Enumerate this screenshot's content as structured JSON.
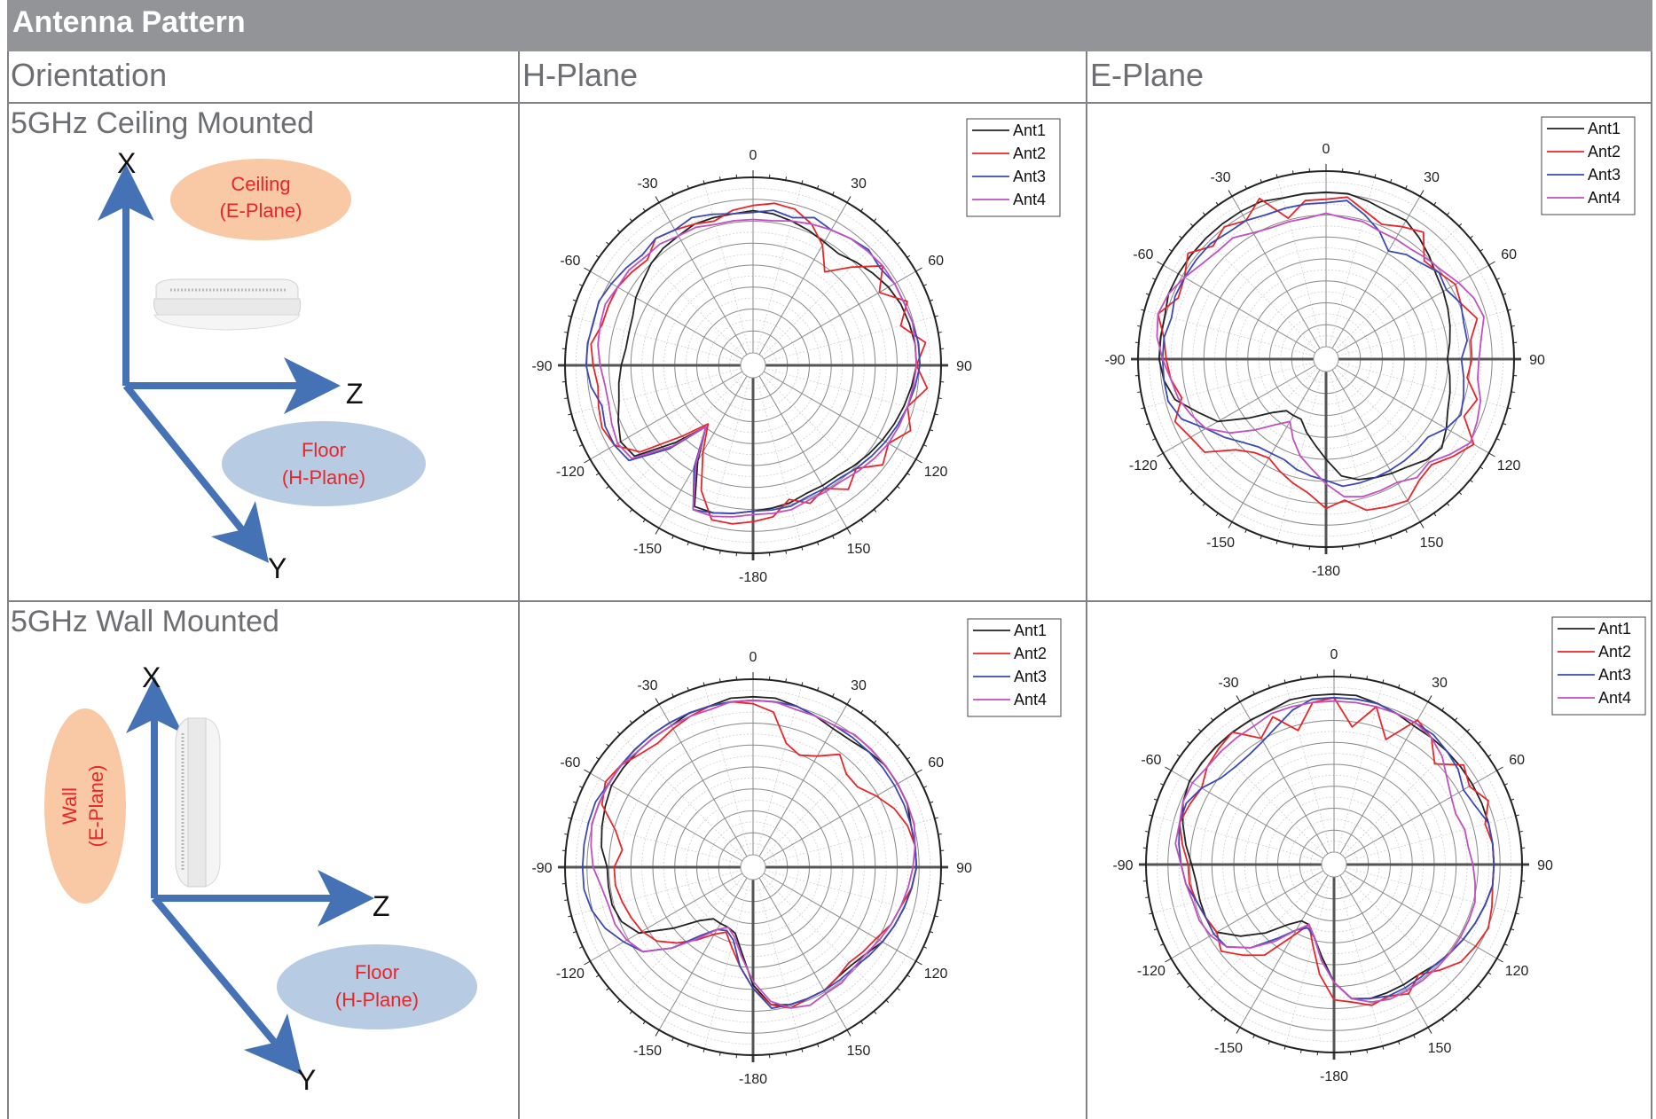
{
  "title": "Antenna Pattern",
  "headers": {
    "orientation": "Orientation",
    "hplane": "H-Plane",
    "eplane": "E-Plane"
  },
  "rows": [
    {
      "label": "5GHz Ceiling Mounted",
      "diagram": {
        "axes": [
          "X",
          "Z",
          "Y"
        ],
        "plane1": [
          "Ceiling",
          "(E-Plane)"
        ],
        "plane2": [
          "Floor",
          "(H-Plane)"
        ]
      }
    },
    {
      "label": "5GHz Wall Mounted",
      "diagram": {
        "axes": [
          "X",
          "Z",
          "Y"
        ],
        "plane1": [
          "Wall",
          "(E-Plane)"
        ],
        "plane2": [
          "Floor",
          "(H-Plane)"
        ]
      }
    }
  ],
  "colors": {
    "ant1": "#222222",
    "ant2": "#e8262a",
    "ant3": "#3b49b4",
    "ant4": "#c050c0",
    "ellipse_orange": "#f8c9a4",
    "ellipse_blue": "#b7cbe3",
    "axis_blue": "#4472b4",
    "label_red": "#e8262a"
  },
  "chart_data": [
    {
      "type": "polar",
      "panel": "5GHz Ceiling Mounted / H-Plane",
      "angle_ticks": [
        "0",
        "30",
        "60",
        "90",
        "120",
        "150",
        "-180",
        "-150",
        "-120",
        "-90",
        "-60",
        "-30"
      ],
      "series": [
        {
          "name": "Ant1",
          "color": "#222222",
          "values": [
            0.81,
            0.8,
            0.78,
            0.76,
            0.74,
            0.73,
            0.76,
            0.79,
            0.82,
            0.84,
            0.85,
            0.86,
            0.86,
            0.84,
            0.82,
            0.8,
            0.78,
            0.76,
            0.74,
            0.72,
            0.72,
            0.72,
            0.74,
            0.75,
            0.76,
            0.78,
            0.8,
            0.8,
            0.56,
            0.37,
            0.55,
            0.78,
            0.8,
            0.76,
            0.72,
            0.7,
            0.68,
            0.66,
            0.66,
            0.67,
            0.7,
            0.72,
            0.75,
            0.77,
            0.78,
            0.8,
            0.8,
            0.8
          ]
        },
        {
          "name": "Ant2",
          "color": "#e8262a",
          "values": [
            0.84,
            0.86,
            0.85,
            0.8,
            0.72,
            0.6,
            0.72,
            0.86,
            0.76,
            0.88,
            0.8,
            0.92,
            0.86,
            0.93,
            0.84,
            0.9,
            0.82,
            0.86,
            0.76,
            0.82,
            0.74,
            0.78,
            0.72,
            0.8,
            0.82,
            0.84,
            0.84,
            0.7,
            0.5,
            0.35,
            0.5,
            0.74,
            0.84,
            0.86,
            0.84,
            0.82,
            0.84,
            0.86,
            0.82,
            0.82,
            0.82,
            0.8,
            0.78,
            0.84,
            0.82,
            0.8,
            0.78,
            0.82
          ]
        },
        {
          "name": "Ant3",
          "color": "#3b49b4",
          "values": [
            0.8,
            0.82,
            0.8,
            0.84,
            0.82,
            0.84,
            0.86,
            0.84,
            0.86,
            0.86,
            0.87,
            0.88,
            0.88,
            0.86,
            0.84,
            0.82,
            0.8,
            0.78,
            0.76,
            0.74,
            0.74,
            0.74,
            0.76,
            0.76,
            0.76,
            0.78,
            0.8,
            0.82,
            0.6,
            0.37,
            0.6,
            0.82,
            0.84,
            0.84,
            0.82,
            0.86,
            0.88,
            0.88,
            0.87,
            0.88,
            0.86,
            0.84,
            0.82,
            0.84,
            0.82,
            0.84,
            0.82,
            0.8
          ]
        },
        {
          "name": "Ant4",
          "color": "#c050c0",
          "values": [
            0.76,
            0.76,
            0.78,
            0.8,
            0.82,
            0.84,
            0.85,
            0.86,
            0.86,
            0.86,
            0.87,
            0.86,
            0.86,
            0.85,
            0.84,
            0.83,
            0.82,
            0.8,
            0.78,
            0.76,
            0.76,
            0.76,
            0.78,
            0.78,
            0.78,
            0.8,
            0.82,
            0.82,
            0.58,
            0.37,
            0.58,
            0.8,
            0.82,
            0.8,
            0.78,
            0.78,
            0.8,
            0.82,
            0.83,
            0.84,
            0.82,
            0.82,
            0.8,
            0.8,
            0.78,
            0.78,
            0.76,
            0.76
          ]
        }
      ]
    },
    {
      "type": "polar",
      "panel": "5GHz Ceiling Mounted / E-Plane",
      "angle_ticks": [
        "0",
        "30",
        "60",
        "90",
        "120",
        "150",
        "-180",
        "-150",
        "-120",
        "-90",
        "-60",
        "-30"
      ],
      "series": [
        {
          "name": "Ant1",
          "color": "#222222",
          "values": [
            0.88,
            0.88,
            0.86,
            0.84,
            0.84,
            0.8,
            0.76,
            0.72,
            0.7,
            0.68,
            0.66,
            0.64,
            0.62,
            0.64,
            0.66,
            0.68,
            0.72,
            0.76,
            0.74,
            0.7,
            0.68,
            0.66,
            0.64,
            0.6,
            0.5,
            0.42,
            0.36,
            0.3,
            0.3,
            0.3,
            0.36,
            0.48,
            0.64,
            0.72,
            0.82,
            0.86,
            0.88,
            0.88,
            0.88,
            0.9,
            0.9,
            0.9,
            0.9,
            0.9,
            0.9,
            0.9,
            0.88,
            0.88
          ]
        },
        {
          "name": "Ant2",
          "color": "#e8262a",
          "values": [
            0.84,
            0.86,
            0.8,
            0.76,
            0.8,
            0.84,
            0.72,
            0.74,
            0.78,
            0.76,
            0.82,
            0.76,
            0.76,
            0.74,
            0.82,
            0.78,
            0.9,
            0.84,
            0.78,
            0.8,
            0.86,
            0.84,
            0.82,
            0.74,
            0.78,
            0.7,
            0.66,
            0.62,
            0.58,
            0.6,
            0.66,
            0.8,
            0.82,
            0.86,
            0.78,
            0.82,
            0.84,
            0.86,
            0.92,
            0.84,
            0.86,
            0.92,
            0.84,
            0.88,
            0.84,
            0.92,
            0.76,
            0.84
          ]
        },
        {
          "name": "Ant3",
          "color": "#3b49b4",
          "values": [
            0.82,
            0.84,
            0.78,
            0.72,
            0.64,
            0.68,
            0.7,
            0.74,
            0.72,
            0.76,
            0.74,
            0.74,
            0.7,
            0.72,
            0.74,
            0.76,
            0.72,
            0.66,
            0.66,
            0.66,
            0.66,
            0.66,
            0.66,
            0.66,
            0.62,
            0.6,
            0.58,
            0.55,
            0.55,
            0.56,
            0.6,
            0.66,
            0.72,
            0.82,
            0.86,
            0.86,
            0.86,
            0.86,
            0.84,
            0.86,
            0.86,
            0.86,
            0.86,
            0.84,
            0.84,
            0.82,
            0.82,
            0.82
          ]
        },
        {
          "name": "Ant4",
          "color": "#c050c0",
          "values": [
            0.76,
            0.74,
            0.74,
            0.72,
            0.72,
            0.72,
            0.74,
            0.76,
            0.8,
            0.84,
            0.86,
            0.82,
            0.8,
            0.8,
            0.84,
            0.86,
            0.88,
            0.82,
            0.76,
            0.78,
            0.74,
            0.74,
            0.74,
            0.72,
            0.64,
            0.56,
            0.5,
            0.42,
            0.34,
            0.4,
            0.5,
            0.62,
            0.72,
            0.76,
            0.8,
            0.82,
            0.86,
            0.9,
            0.92,
            0.9,
            0.86,
            0.82,
            0.8,
            0.8,
            0.76,
            0.74,
            0.74,
            0.74
          ]
        }
      ]
    },
    {
      "type": "polar",
      "panel": "5GHz Wall Mounted / H-Plane",
      "angle_ticks": [
        "0",
        "30",
        "60",
        "90",
        "120",
        "150",
        "-180",
        "-150",
        "-120",
        "-90",
        "-60",
        "-30"
      ],
      "series": [
        {
          "name": "Ant1",
          "color": "#222222",
          "values": [
            0.9,
            0.9,
            0.88,
            0.86,
            0.84,
            0.84,
            0.86,
            0.88,
            0.88,
            0.88,
            0.86,
            0.86,
            0.86,
            0.84,
            0.82,
            0.8,
            0.78,
            0.74,
            0.72,
            0.72,
            0.74,
            0.74,
            0.74,
            0.72,
            0.6,
            0.42,
            0.32,
            0.3,
            0.3,
            0.3,
            0.36,
            0.5,
            0.68,
            0.74,
            0.76,
            0.76,
            0.76,
            0.8,
            0.82,
            0.84,
            0.86,
            0.86,
            0.86,
            0.86,
            0.86,
            0.88,
            0.88,
            0.9
          ]
        },
        {
          "name": "Ant2",
          "color": "#e8262a",
          "values": [
            0.86,
            0.82,
            0.66,
            0.62,
            0.66,
            0.74,
            0.68,
            0.68,
            0.74,
            0.8,
            0.84,
            0.86,
            0.86,
            0.84,
            0.8,
            0.78,
            0.74,
            0.72,
            0.7,
            0.72,
            0.74,
            0.74,
            0.76,
            0.72,
            0.62,
            0.5,
            0.4,
            0.33,
            0.37,
            0.45,
            0.54,
            0.62,
            0.66,
            0.68,
            0.7,
            0.72,
            0.72,
            0.68,
            0.74,
            0.86,
            0.9,
            0.88,
            0.84,
            0.82,
            0.84,
            0.86,
            0.88,
            0.88
          ]
        },
        {
          "name": "Ant3",
          "color": "#3b49b4",
          "values": [
            0.88,
            0.88,
            0.88,
            0.86,
            0.86,
            0.86,
            0.86,
            0.86,
            0.86,
            0.86,
            0.86,
            0.86,
            0.86,
            0.84,
            0.82,
            0.8,
            0.78,
            0.76,
            0.74,
            0.74,
            0.74,
            0.74,
            0.74,
            0.74,
            0.62,
            0.5,
            0.36,
            0.32,
            0.34,
            0.42,
            0.58,
            0.72,
            0.78,
            0.84,
            0.88,
            0.9,
            0.9,
            0.9,
            0.9,
            0.9,
            0.88,
            0.88,
            0.88,
            0.88,
            0.88,
            0.88,
            0.88,
            0.88
          ]
        },
        {
          "name": "Ant4",
          "color": "#c050c0",
          "values": [
            0.88,
            0.88,
            0.86,
            0.86,
            0.86,
            0.88,
            0.88,
            0.88,
            0.88,
            0.88,
            0.88,
            0.86,
            0.84,
            0.82,
            0.8,
            0.78,
            0.76,
            0.74,
            0.74,
            0.76,
            0.76,
            0.78,
            0.76,
            0.7,
            0.58,
            0.44,
            0.34,
            0.3,
            0.34,
            0.44,
            0.58,
            0.72,
            0.76,
            0.78,
            0.78,
            0.8,
            0.84,
            0.86,
            0.88,
            0.88,
            0.88,
            0.88,
            0.86,
            0.86,
            0.86,
            0.86,
            0.86,
            0.88
          ]
        }
      ]
    },
    {
      "type": "polar",
      "panel": "5GHz Wall Mounted / E-Plane",
      "angle_ticks": [
        "0",
        "30",
        "60",
        "90",
        "120",
        "150",
        "-180",
        "-150",
        "-120",
        "-90",
        "-60",
        "-30"
      ],
      "series": [
        {
          "name": "Ant1",
          "color": "#222222",
          "values": [
            0.9,
            0.9,
            0.88,
            0.86,
            0.84,
            0.84,
            0.84,
            0.84,
            0.84,
            0.84,
            0.84,
            0.84,
            0.84,
            0.84,
            0.82,
            0.8,
            0.78,
            0.76,
            0.74,
            0.72,
            0.72,
            0.72,
            0.72,
            0.7,
            0.6,
            0.46,
            0.36,
            0.3,
            0.3,
            0.36,
            0.48,
            0.6,
            0.7,
            0.72,
            0.72,
            0.72,
            0.74,
            0.78,
            0.82,
            0.86,
            0.88,
            0.88,
            0.88,
            0.88,
            0.88,
            0.88,
            0.9,
            0.9
          ]
        },
        {
          "name": "Ant2",
          "color": "#e8262a",
          "values": [
            0.88,
            0.72,
            0.86,
            0.7,
            0.88,
            0.84,
            0.74,
            0.86,
            0.82,
            0.88,
            0.82,
            0.84,
            0.84,
            0.84,
            0.86,
            0.88,
            0.86,
            0.84,
            0.78,
            0.72,
            0.78,
            0.74,
            0.76,
            0.72,
            0.7,
            0.56,
            0.4,
            0.3,
            0.4,
            0.58,
            0.66,
            0.74,
            0.7,
            0.72,
            0.74,
            0.76,
            0.76,
            0.8,
            0.84,
            0.82,
            0.8,
            0.84,
            0.86,
            0.88,
            0.76,
            0.84,
            0.72,
            0.86
          ]
        },
        {
          "name": "Ant3",
          "color": "#3b49b4",
          "values": [
            0.88,
            0.88,
            0.88,
            0.86,
            0.86,
            0.86,
            0.84,
            0.82,
            0.78,
            0.8,
            0.84,
            0.84,
            0.84,
            0.84,
            0.82,
            0.8,
            0.78,
            0.76,
            0.74,
            0.74,
            0.74,
            0.74,
            0.72,
            0.7,
            0.6,
            0.48,
            0.36,
            0.32,
            0.36,
            0.46,
            0.6,
            0.7,
            0.72,
            0.72,
            0.74,
            0.78,
            0.8,
            0.82,
            0.84,
            0.84,
            0.8,
            0.74,
            0.72,
            0.72,
            0.74,
            0.78,
            0.84,
            0.88
          ]
        },
        {
          "name": "Ant4",
          "color": "#c050c0",
          "values": [
            0.86,
            0.86,
            0.86,
            0.86,
            0.86,
            0.84,
            0.8,
            0.74,
            0.7,
            0.68,
            0.7,
            0.7,
            0.72,
            0.74,
            0.76,
            0.76,
            0.76,
            0.76,
            0.76,
            0.76,
            0.76,
            0.76,
            0.74,
            0.7,
            0.6,
            0.48,
            0.36,
            0.3,
            0.36,
            0.48,
            0.6,
            0.7,
            0.74,
            0.76,
            0.76,
            0.78,
            0.8,
            0.84,
            0.84,
            0.86,
            0.86,
            0.84,
            0.84,
            0.84,
            0.84,
            0.86,
            0.86,
            0.86
          ]
        }
      ]
    }
  ]
}
